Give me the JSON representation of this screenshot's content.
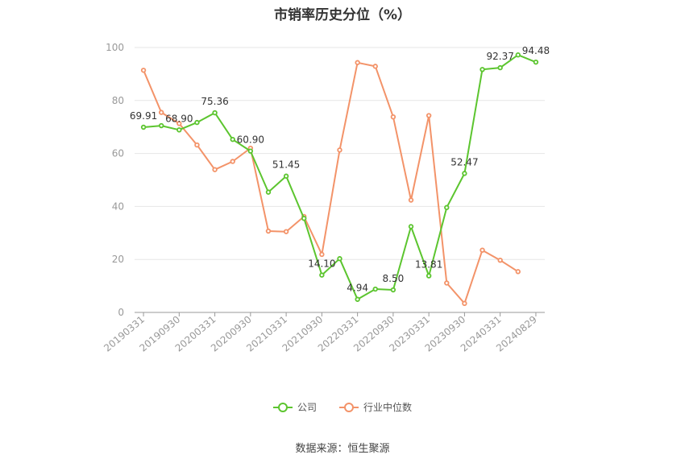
{
  "chart_data": {
    "type": "line",
    "title": "市销率历史分位（%）",
    "x": [
      "20190331",
      "20190630",
      "20190930",
      "20191231",
      "20200331",
      "20200630",
      "20200930",
      "20201231",
      "20210331",
      "20210630",
      "20210930",
      "20211231",
      "20220331",
      "20220630",
      "20220930",
      "20221231",
      "20230331",
      "20230630",
      "20230930",
      "20231231",
      "20240331",
      "20240630",
      "20240829"
    ],
    "x_tick_labels": [
      "20190331",
      "20190930",
      "20200331",
      "20200930",
      "20210331",
      "20210930",
      "20220331",
      "20220930",
      "20230331",
      "20230930",
      "20240331",
      "20240829"
    ],
    "ylim": [
      0,
      100
    ],
    "y_ticks": [
      0,
      20,
      40,
      60,
      80,
      100
    ],
    "grid": true,
    "legend": "bottom",
    "series": [
      {
        "name": "公司",
        "color": "#5cc52f",
        "values": [
          69.91,
          70.5,
          68.9,
          71.7,
          75.36,
          65.3,
          60.9,
          45.4,
          51.45,
          35.5,
          14.1,
          20.3,
          4.94,
          8.8,
          8.5,
          32.4,
          13.81,
          39.6,
          52.47,
          91.7,
          92.37,
          97.2,
          94.48
        ],
        "labels": [
          "69.91",
          null,
          "68.90",
          null,
          "75.36",
          null,
          "60.90",
          null,
          "51.45",
          null,
          "14.10",
          null,
          "4.94",
          null,
          "8.50",
          null,
          "13.81",
          null,
          "52.47",
          null,
          "92.37",
          null,
          "94.48"
        ]
      },
      {
        "name": "行业中位数",
        "color": "#f39369",
        "values": [
          91.4,
          75.5,
          71.3,
          63.2,
          53.9,
          57.0,
          62.0,
          30.7,
          30.5,
          36.2,
          21.9,
          61.3,
          94.3,
          92.9,
          73.8,
          42.4,
          74.3,
          11.1,
          3.4,
          23.5,
          19.7,
          15.4,
          null
        ]
      }
    ]
  },
  "source": "数据来源：恒生聚源"
}
